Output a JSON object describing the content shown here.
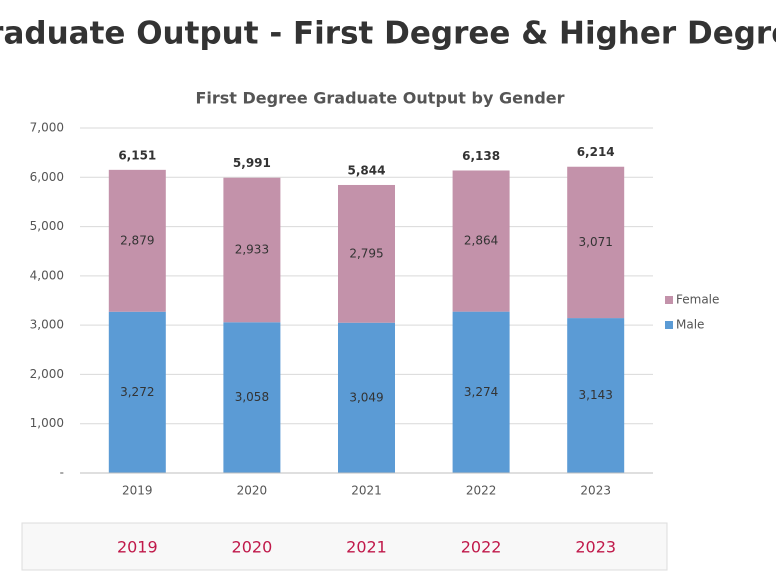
{
  "header": {
    "title": "Graduate Output - First Degree & Higher Degree"
  },
  "chart_data": {
    "type": "stacked-bar",
    "title": "First Degree Graduate Output by Gender",
    "categories": [
      "2019",
      "2020",
      "2021",
      "2022",
      "2023"
    ],
    "series": [
      {
        "name": "Male",
        "color": "#5b9bd5",
        "values": [
          3272,
          3058,
          3049,
          3274,
          3143
        ],
        "value_labels": [
          "3,272",
          "3,058",
          "3,049",
          "3,274",
          "3,143"
        ]
      },
      {
        "name": "Female",
        "color": "#c392aa",
        "values": [
          2879,
          2933,
          2795,
          2864,
          3071
        ],
        "value_labels": [
          "2,879",
          "2,933",
          "2,795",
          "2,864",
          "3,071"
        ]
      }
    ],
    "totals": [
      6151,
      5991,
      5844,
      6138,
      6214
    ],
    "total_labels": [
      "6,151",
      "5,991",
      "5,844",
      "6,138",
      "6,214"
    ],
    "ylim": [
      0,
      7000
    ],
    "yticks": [
      {
        "value": 0,
        "label": "-"
      },
      {
        "value": 1000,
        "label": "1,000"
      },
      {
        "value": 2000,
        "label": "2,000"
      },
      {
        "value": 3000,
        "label": "3,000"
      },
      {
        "value": 4000,
        "label": "4,000"
      },
      {
        "value": 5000,
        "label": "5,000"
      },
      {
        "value": 6000,
        "label": "6,000"
      },
      {
        "value": 7000,
        "label": "7,000"
      }
    ],
    "grid": true,
    "legend": "right"
  },
  "tabs": [
    "2019",
    "2020",
    "2021",
    "2022",
    "2023"
  ]
}
